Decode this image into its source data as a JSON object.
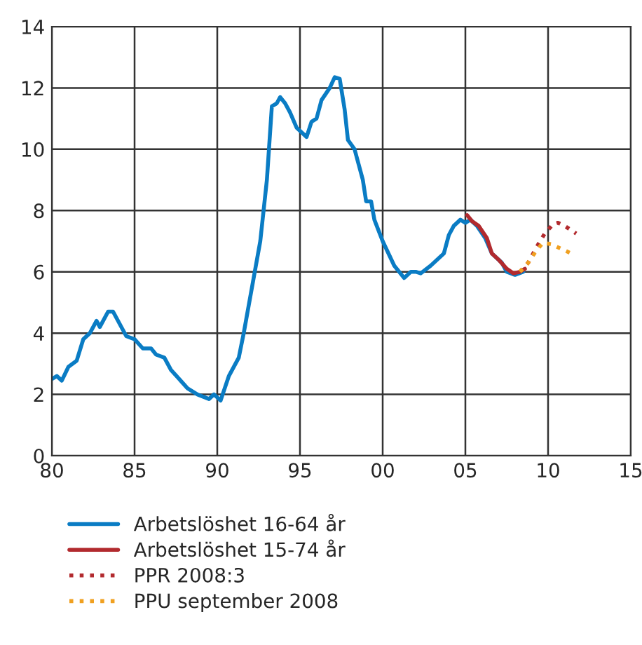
{
  "chart_data": {
    "type": "line",
    "xlim": [
      1980,
      2015
    ],
    "ylim": [
      0,
      14
    ],
    "xticks": [
      {
        "value": 1980,
        "label": "80"
      },
      {
        "value": 1985,
        "label": "85"
      },
      {
        "value": 1990,
        "label": "90"
      },
      {
        "value": 1995,
        "label": "95"
      },
      {
        "value": 2000,
        "label": "00"
      },
      {
        "value": 2005,
        "label": "05"
      },
      {
        "value": 2010,
        "label": "10"
      },
      {
        "value": 2015,
        "label": "15"
      }
    ],
    "yticks": [
      0,
      2,
      4,
      6,
      8,
      10,
      12,
      14
    ],
    "grid": true,
    "legend": "bottom",
    "series": [
      {
        "name": "Arbetslöshet 16-64 år",
        "color": "#0a7cc4",
        "line_style": "solid",
        "x": [
          1980.0,
          1980.3,
          1980.6,
          1981.0,
          1981.5,
          1981.9,
          1982.3,
          1982.7,
          1982.9,
          1983.4,
          1983.7,
          1984.1,
          1984.5,
          1985.0,
          1985.5,
          1986.0,
          1986.3,
          1986.8,
          1987.2,
          1987.7,
          1988.2,
          1988.8,
          1989.5,
          1989.8,
          1990.2,
          1990.7,
          1991.3,
          1991.6,
          1992.2,
          1992.6,
          1993.0,
          1993.3,
          1993.6,
          1993.8,
          1994.1,
          1994.4,
          1994.8,
          1995.4,
          1995.7,
          1996.0,
          1996.3,
          1996.8,
          1997.1,
          1997.4,
          1997.7,
          1997.9,
          1998.3,
          1998.8,
          1999.0,
          1999.3,
          1999.5,
          2000.0,
          2000.7,
          2001.3,
          2001.7,
          2002.0,
          2002.3,
          2002.9,
          2003.3,
          2003.7,
          2004.0,
          2004.3,
          2004.7,
          2005.0,
          2005.3,
          2005.7,
          2006.2,
          2006.6,
          2007.2,
          2007.5,
          2008.0,
          2008.5
        ],
        "values": [
          2.5,
          2.6,
          2.45,
          2.9,
          3.1,
          3.8,
          4.0,
          4.4,
          4.2,
          4.7,
          4.7,
          4.3,
          3.9,
          3.8,
          3.5,
          3.5,
          3.3,
          3.2,
          2.8,
          2.5,
          2.2,
          2.0,
          1.85,
          2.0,
          1.8,
          2.6,
          3.2,
          4.0,
          5.8,
          7.0,
          9.0,
          11.4,
          11.5,
          11.7,
          11.5,
          11.2,
          10.7,
          10.4,
          10.9,
          11.0,
          11.6,
          12.0,
          12.35,
          12.3,
          11.3,
          10.3,
          10.0,
          9.0,
          8.3,
          8.3,
          7.7,
          7.0,
          6.2,
          5.8,
          6.0,
          6.0,
          5.95,
          6.2,
          6.4,
          6.6,
          7.2,
          7.5,
          7.7,
          7.6,
          7.7,
          7.5,
          7.1,
          6.6,
          6.3,
          6.0,
          5.9,
          6.0
        ]
      },
      {
        "name": "Arbetslöshet 15-74 år",
        "color": "#b22a2e",
        "line_style": "solid",
        "x": [
          2005.1,
          2005.4,
          2005.8,
          2006.3,
          2006.6,
          2007.0,
          2007.5,
          2007.9,
          2008.3,
          2008.6
        ],
        "values": [
          7.85,
          7.65,
          7.5,
          7.1,
          6.6,
          6.4,
          6.1,
          5.95,
          6.0,
          6.1
        ]
      },
      {
        "name": "PPR 2008:3",
        "color": "#b22a2e",
        "line_style": "dotted",
        "x": [
          2008.3,
          2008.8,
          2009.3,
          2009.8,
          2010.3,
          2010.6,
          2011.0,
          2011.7
        ],
        "values": [
          6.0,
          6.3,
          6.8,
          7.25,
          7.55,
          7.6,
          7.5,
          7.25
        ]
      },
      {
        "name": "PPU september 2008",
        "color": "#f0a020",
        "line_style": "dotted",
        "x": [
          2008.3,
          2008.8,
          2009.3,
          2009.7,
          2010.2,
          2010.8,
          2011.4
        ],
        "values": [
          6.0,
          6.3,
          6.7,
          6.95,
          6.9,
          6.75,
          6.6
        ]
      }
    ]
  }
}
